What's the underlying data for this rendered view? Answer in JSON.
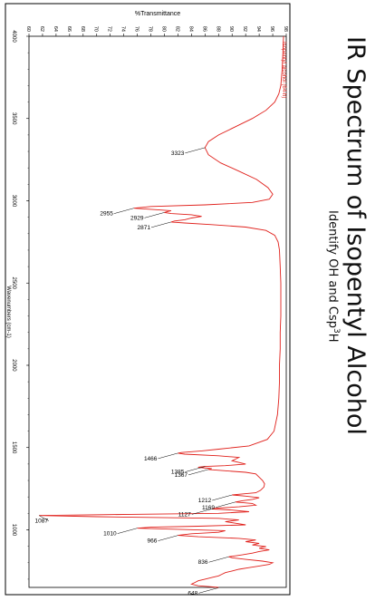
{
  "title": "IR Spectrum of Isopentyl Alcohol",
  "subtitle_main": "Identify OH and Csp",
  "subtitle_sup": "3",
  "subtitle_tail": "H",
  "chart_data": {
    "type": "line",
    "xlabel": "Wavenumbers (cm-1)",
    "ylabel": "%Transmittance",
    "xlim": [
      4000,
      650
    ],
    "ylim": [
      60,
      98
    ],
    "x_ticks": [
      4000,
      3500,
      3000,
      2500,
      2000,
      1500,
      1000
    ],
    "y_ticks": [
      60,
      62,
      64,
      66,
      68,
      70,
      72,
      74,
      76,
      78,
      80,
      82,
      84,
      86,
      88,
      90,
      92,
      94,
      96,
      98
    ],
    "legend": "Isopentyl alcohol (64-h)",
    "color": "#e0201b",
    "series": [
      {
        "x": [
          4000,
          3900,
          3800,
          3700,
          3650,
          3600,
          3550,
          3500,
          3450,
          3400,
          3360,
          3323,
          3280,
          3230,
          3180,
          3130,
          3080,
          3040,
          3010,
          2990,
          2975,
          2965,
          2955,
          2948,
          2940,
          2935,
          2929,
          2922,
          2915,
          2905,
          2895,
          2885,
          2877,
          2871,
          2865,
          2855,
          2840,
          2820,
          2790,
          2750,
          2700,
          2600,
          2500,
          2400,
          2300,
          2200,
          2100,
          2000,
          1900,
          1800,
          1700,
          1600,
          1550,
          1510,
          1490,
          1480,
          1475,
          1470,
          1466,
          1460,
          1450,
          1440,
          1420,
          1400,
          1390,
          1385,
          1380,
          1372,
          1367,
          1360,
          1350,
          1340,
          1320,
          1300,
          1280,
          1260,
          1240,
          1225,
          1218,
          1212,
          1205,
          1195,
          1185,
          1177,
          1169,
          1160,
          1150,
          1140,
          1132,
          1127,
          1120,
          1110,
          1100,
          1094,
          1087,
          1080,
          1070,
          1060,
          1050,
          1040,
          1030,
          1022,
          1016,
          1010,
          1003,
          995,
          985,
          976,
          966,
          958,
          948,
          938,
          928,
          918,
          908,
          898,
          888,
          878,
          868,
          858,
          848,
          842,
          836,
          830,
          820,
          810,
          800,
          790,
          780,
          770,
          760,
          750,
          740,
          730,
          720,
          710,
          700,
          690,
          680,
          670,
          660,
          655,
          650
        ],
        "y": [
          97.6,
          97.5,
          97.4,
          97.2,
          96.9,
          96.3,
          95.0,
          93.0,
          90.5,
          88.0,
          86.5,
          86.0,
          86.5,
          88.3,
          91.0,
          93.6,
          95.3,
          96.0,
          95.5,
          93.0,
          86.0,
          78.0,
          75.5,
          78.0,
          81.0,
          80.5,
          80.0,
          81.0,
          84.0,
          85.5,
          84.0,
          83.0,
          81.5,
          81.0,
          83.0,
          87.0,
          92.0,
          95.0,
          96.3,
          96.8,
          97.0,
          97.1,
          97.2,
          97.2,
          97.2,
          97.1,
          97.1,
          97.0,
          97.0,
          96.9,
          96.7,
          96.2,
          95.2,
          92.5,
          88.0,
          85.5,
          84.0,
          82.5,
          82.0,
          83.0,
          88.0,
          91.0,
          90.0,
          92.0,
          89.0,
          86.0,
          85.0,
          87.0,
          86.5,
          88.5,
          92.0,
          93.5,
          94.0,
          94.5,
          94.8,
          94.7,
          94.2,
          93.5,
          91.5,
          90.0,
          92.0,
          94.0,
          93.0,
          91.5,
          90.5,
          93.0,
          93.5,
          91.0,
          88.0,
          87.0,
          90.0,
          92.5,
          88.0,
          75.0,
          61.5,
          70.0,
          88.0,
          91.0,
          89.0,
          90.5,
          92.0,
          85.0,
          78.0,
          76.0,
          82.0,
          89.0,
          88.0,
          84.0,
          82.0,
          85.0,
          91.0,
          93.5,
          92.0,
          94.0,
          93.0,
          95.0,
          94.0,
          95.5,
          94.0,
          93.0,
          91.5,
          90.5,
          89.5,
          90.0,
          92.0,
          94.5,
          96.0,
          95.5,
          94.0,
          92.5,
          91.0,
          90.0,
          89.0,
          88.5,
          88.0,
          87.0,
          86.0,
          85.0,
          84.5,
          84.0,
          85.0,
          86.5,
          88.0
        ]
      }
    ],
    "peaks": [
      {
        "x": 3323,
        "label": "3323"
      },
      {
        "x": 2955,
        "label": "2955"
      },
      {
        "x": 2929,
        "label": "2929"
      },
      {
        "x": 2871,
        "label": "2871"
      },
      {
        "x": 1466,
        "label": "1466"
      },
      {
        "x": 1385,
        "label": "1385"
      },
      {
        "x": 1367,
        "label": "1367"
      },
      {
        "x": 1212,
        "label": "1212"
      },
      {
        "x": 1169,
        "label": "1169"
      },
      {
        "x": 1127,
        "label": "1127"
      },
      {
        "x": 1087,
        "label": "1087"
      },
      {
        "x": 1010,
        "label": "1010"
      },
      {
        "x": 966,
        "label": "966"
      },
      {
        "x": 836,
        "label": "836"
      },
      {
        "x": 648,
        "label": "648"
      }
    ]
  }
}
